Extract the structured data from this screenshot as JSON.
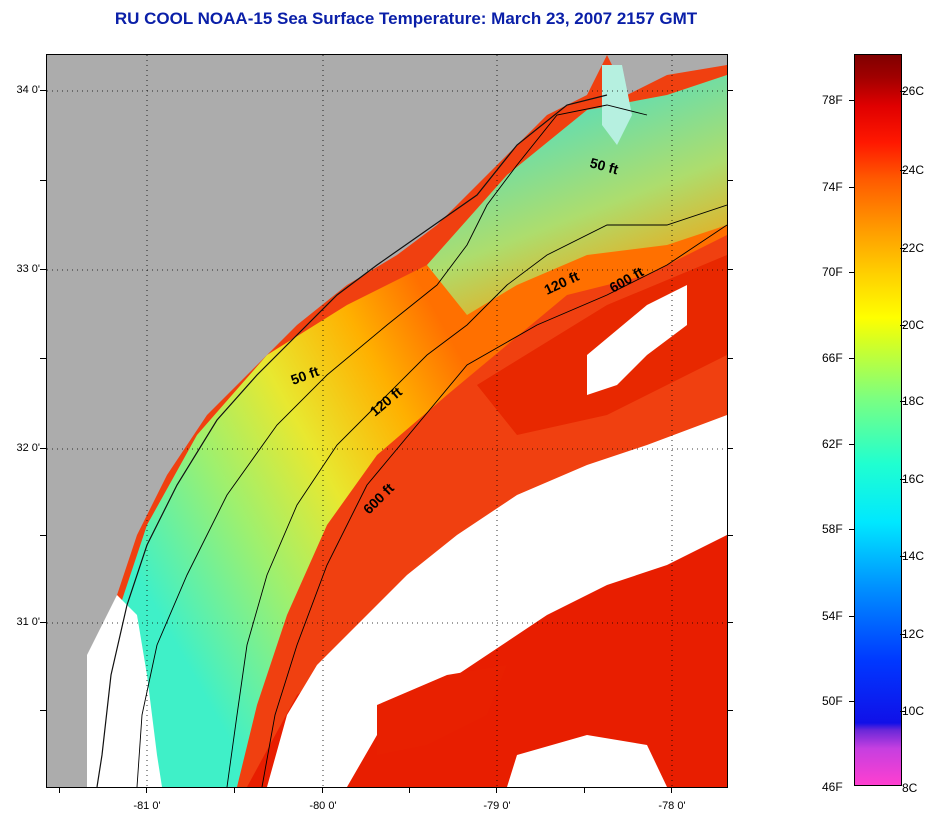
{
  "title": "RU COOL  NOAA-15  Sea Surface Temperature:  March 23, 2007 2157 GMT",
  "map": {
    "latitude_labels": [
      "34 0'",
      "33 0'",
      "32 0'",
      "31 0'"
    ],
    "longitude_labels": [
      "-81 0'",
      "-80 0'",
      "-79 0'",
      "-78 0'"
    ],
    "contours": {
      "label_50_north": "50 ft",
      "label_50_south": "50 ft",
      "label_120_north": "120 ft",
      "label_120_south": "120 ft",
      "label_600_north": "600 ft",
      "label_600_south": "600 ft"
    },
    "colors": {
      "land": "#acacac",
      "cloud_no_data": "#ffffff",
      "cold_shelf": "#3ff0d8",
      "mid_shelf": "#d8f040",
      "warm_shelf": "#ffa000",
      "gulf_stream": "#f02000"
    }
  },
  "colorbar": {
    "fahrenheit_labels": [
      "78F",
      "74F",
      "70F",
      "66F",
      "62F",
      "58F",
      "54F",
      "50F",
      "46F"
    ],
    "celsius_labels": [
      "26C",
      "24C",
      "22C",
      "20C",
      "18C",
      "16C",
      "14C",
      "12C",
      "10C",
      "8C"
    ]
  }
}
